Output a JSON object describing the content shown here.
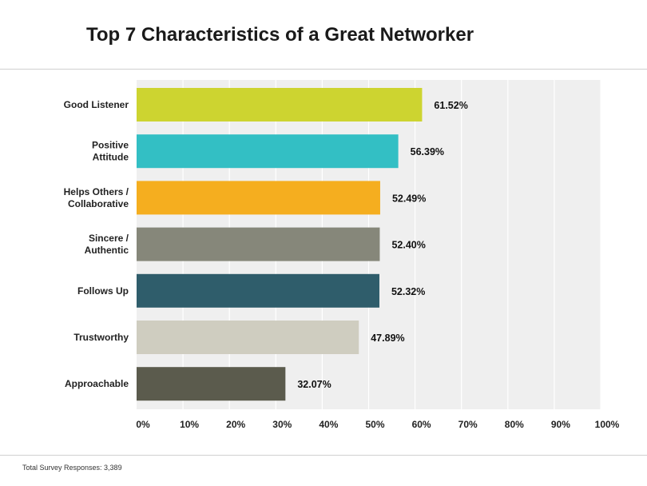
{
  "footnote": "Total Survey Responses: 3,389",
  "chart_data": {
    "type": "bar",
    "orientation": "horizontal",
    "title": "Top 7 Characteristics of a Great Networker",
    "categories": [
      [
        "Good Listener"
      ],
      [
        "Positive",
        "Attitude"
      ],
      [
        "Helps Others /",
        "Collaborative"
      ],
      [
        "Sincere /",
        "Authentic"
      ],
      [
        "Follows Up"
      ],
      [
        "Trustworthy"
      ],
      [
        "Approachable"
      ]
    ],
    "values": [
      61.52,
      56.39,
      52.49,
      52.4,
      52.32,
      47.89,
      32.07
    ],
    "data_labels": [
      "61.52%",
      "56.39%",
      "52.49%",
      "52.40%",
      "52.32%",
      "47.89%",
      "32.07%"
    ],
    "colors": [
      "#cdd430",
      "#33bfc4",
      "#f5ae1f",
      "#86877a",
      "#2f5d6b",
      "#cfcdc0",
      "#5b5b4d"
    ],
    "x_ticks": [
      "0%",
      "10%",
      "20%",
      "30%",
      "40%",
      "50%",
      "60%",
      "70%",
      "80%",
      "90%",
      "100%"
    ],
    "xlim": [
      0,
      100
    ],
    "grid": true,
    "plot_background": "#efefef"
  }
}
